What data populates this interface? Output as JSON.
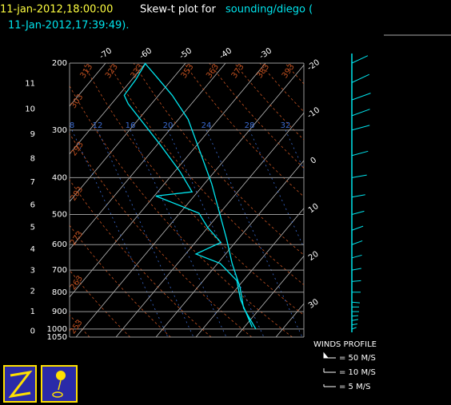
{
  "chart_data": {
    "type": "skew-t",
    "title": {
      "time": "11-jan-2012,18:00:00",
      "prefix": "Skew-t plot for",
      "source": "sounding/diego (",
      "launch": "11-Jan-2012,17:39:49)."
    },
    "ylim": [
      200,
      1050
    ],
    "log_y": true,
    "yticks": [
      200,
      300,
      400,
      500,
      600,
      700,
      800,
      900,
      1000,
      1050
    ],
    "xticks": [
      -70,
      -60,
      -50,
      -40,
      -30,
      -20,
      -10,
      0,
      10,
      20,
      30
    ],
    "height_ticks": [
      0,
      1,
      2,
      3,
      4,
      5,
      6,
      7,
      8,
      9,
      10,
      11
    ],
    "mixing_ratio_labels": [
      8,
      12,
      16,
      20,
      24,
      28,
      32
    ],
    "potential_temperature_labels": [
      313,
      323,
      333,
      353,
      363,
      373,
      383,
      393,
      303,
      293,
      283,
      273,
      263,
      253
    ],
    "series": [
      {
        "color": "#00e5ee",
        "pressure": [
          1000,
          880,
          777,
          672,
          581,
          503,
          415,
          342,
          281,
          243,
          216,
          200
        ],
        "temperature": [
          23.3,
          15.8,
          10.6,
          3.6,
          -2.8,
          -9.4,
          -18.2,
          -27.8,
          -37.6,
          -46.6,
          -54.8,
          -60.2
        ]
      },
      {
        "color": "#00e5ee",
        "pressure": [
          989,
          835,
          746,
          672,
          635,
          592,
          541,
          496,
          447,
          436,
          386,
          326,
          256,
          243,
          221,
          200
        ],
        "temperature": [
          22,
          13.2,
          8.4,
          0.6,
          -7.4,
          -3.6,
          -10,
          -15.2,
          -29.6,
          -21.4,
          -28.6,
          -39.6,
          -55.8,
          -58.6,
          -59,
          -60
        ]
      }
    ],
    "winds": {
      "title": "WINDS PROFILE",
      "color": "#00e5ee",
      "pressure": [
        1000,
        975,
        950,
        925,
        900,
        875,
        850,
        800,
        750,
        700,
        650,
        600,
        550,
        500,
        450,
        400,
        350,
        300,
        275,
        250,
        225,
        200
      ],
      "speed": [
        4,
        6,
        8,
        8,
        10,
        10,
        12,
        14,
        15,
        16,
        18,
        20,
        22,
        24,
        26,
        30,
        34,
        38,
        40,
        42,
        40,
        36
      ],
      "direction": [
        250,
        260,
        260,
        265,
        270,
        270,
        275,
        270,
        265,
        260,
        255,
        250,
        250,
        255,
        260,
        260,
        255,
        255,
        250,
        250,
        245,
        245
      ],
      "legend": [
        {
          "speed": 50,
          "label": "= 50 M/S"
        },
        {
          "speed": 10,
          "label": "= 10 M/S"
        },
        {
          "speed": 5,
          "label": "= 5 M/S"
        }
      ]
    }
  }
}
